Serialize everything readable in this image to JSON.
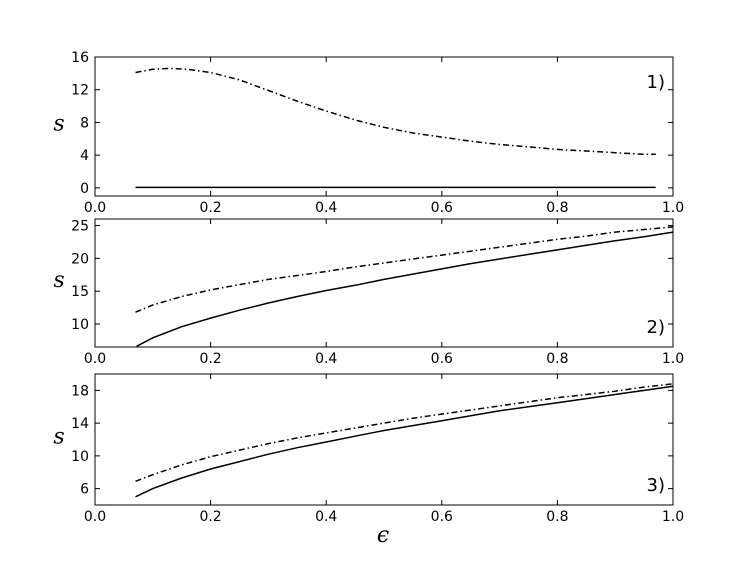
{
  "figure": {
    "xlabel": "ϵ"
  },
  "chart_data": [
    {
      "type": "line",
      "panel_label": "1)",
      "ylabel": "s",
      "xlim": [
        0.0,
        1.0
      ],
      "ylim": [
        -1,
        16
      ],
      "xticks": [
        0.0,
        0.2,
        0.4,
        0.6,
        0.8,
        1.0
      ],
      "xtick_labels": [
        "0.0",
        "0.2",
        "0.4",
        "0.6",
        "0.8",
        "1.0"
      ],
      "yticks": [
        0,
        4,
        8,
        12,
        16
      ],
      "ytick_labels": [
        "0",
        "4",
        "8",
        "12",
        "16"
      ],
      "series": [
        {
          "style": "dashdot",
          "x": [
            0.07,
            0.1,
            0.13,
            0.16,
            0.2,
            0.25,
            0.3,
            0.35,
            0.4,
            0.45,
            0.5,
            0.55,
            0.6,
            0.65,
            0.7,
            0.75,
            0.8,
            0.85,
            0.9,
            0.95,
            0.97
          ],
          "y": [
            14.1,
            14.5,
            14.6,
            14.5,
            14.1,
            13.2,
            11.9,
            10.6,
            9.4,
            8.3,
            7.4,
            6.7,
            6.2,
            5.7,
            5.3,
            5.0,
            4.7,
            4.5,
            4.3,
            4.1,
            4.1
          ]
        },
        {
          "style": "solid",
          "x": [
            0.07,
            0.97
          ],
          "y": [
            0.05,
            0.05
          ]
        }
      ]
    },
    {
      "type": "line",
      "panel_label": "2)",
      "ylabel": "s",
      "xlim": [
        0.0,
        1.0
      ],
      "ylim": [
        6.5,
        26
      ],
      "xticks": [
        0.0,
        0.2,
        0.4,
        0.6,
        0.8,
        1.0
      ],
      "xtick_labels": [
        "0.0",
        "0.2",
        "0.4",
        "0.6",
        "0.8",
        "1.0"
      ],
      "yticks": [
        10,
        15,
        20,
        25
      ],
      "ytick_labels": [
        "10",
        "15",
        "20",
        "25"
      ],
      "series": [
        {
          "style": "dashdot",
          "x": [
            0.07,
            0.1,
            0.15,
            0.2,
            0.25,
            0.3,
            0.35,
            0.4,
            0.45,
            0.5,
            0.55,
            0.6,
            0.65,
            0.7,
            0.75,
            0.8,
            0.85,
            0.9,
            0.95,
            1.0
          ],
          "y": [
            11.8,
            12.9,
            14.2,
            15.2,
            16.0,
            16.8,
            17.4,
            18.0,
            18.7,
            19.3,
            19.9,
            20.5,
            21.1,
            21.7,
            22.3,
            22.9,
            23.4,
            24.0,
            24.4,
            24.8
          ]
        },
        {
          "style": "solid",
          "x": [
            0.072,
            0.1,
            0.15,
            0.2,
            0.25,
            0.3,
            0.35,
            0.4,
            0.45,
            0.5,
            0.55,
            0.6,
            0.65,
            0.7,
            0.75,
            0.8,
            0.85,
            0.9,
            0.95,
            1.0
          ],
          "y": [
            6.6,
            7.9,
            9.6,
            10.9,
            12.1,
            13.2,
            14.2,
            15.1,
            15.9,
            16.8,
            17.6,
            18.4,
            19.2,
            19.9,
            20.6,
            21.3,
            22.0,
            22.7,
            23.3,
            24.0
          ]
        }
      ]
    },
    {
      "type": "line",
      "panel_label": "3)",
      "ylabel": "s",
      "xlim": [
        0.0,
        1.0
      ],
      "ylim": [
        4,
        20
      ],
      "xticks": [
        0.0,
        0.2,
        0.4,
        0.6,
        0.8,
        1.0
      ],
      "xtick_labels": [
        "0.0",
        "0.2",
        "0.4",
        "0.6",
        "0.8",
        "1.0"
      ],
      "yticks": [
        6,
        10,
        14,
        18
      ],
      "ytick_labels": [
        "6",
        "10",
        "14",
        "18"
      ],
      "series": [
        {
          "style": "dashdot",
          "x": [
            0.07,
            0.1,
            0.15,
            0.2,
            0.25,
            0.3,
            0.35,
            0.4,
            0.45,
            0.5,
            0.55,
            0.6,
            0.65,
            0.7,
            0.75,
            0.8,
            0.85,
            0.9,
            0.95,
            1.0
          ],
          "y": [
            6.9,
            7.7,
            8.9,
            9.9,
            10.7,
            11.5,
            12.2,
            12.8,
            13.4,
            14.0,
            14.6,
            15.1,
            15.6,
            16.1,
            16.6,
            17.1,
            17.5,
            17.9,
            18.4,
            18.8
          ]
        },
        {
          "style": "solid",
          "x": [
            0.07,
            0.1,
            0.15,
            0.2,
            0.25,
            0.3,
            0.35,
            0.4,
            0.45,
            0.5,
            0.55,
            0.6,
            0.65,
            0.7,
            0.75,
            0.8,
            0.85,
            0.9,
            0.95,
            1.0
          ],
          "y": [
            5.0,
            6.0,
            7.3,
            8.4,
            9.3,
            10.2,
            11.0,
            11.7,
            12.4,
            13.1,
            13.7,
            14.3,
            14.9,
            15.5,
            16.0,
            16.5,
            17.0,
            17.5,
            18.0,
            18.5
          ]
        }
      ]
    }
  ]
}
